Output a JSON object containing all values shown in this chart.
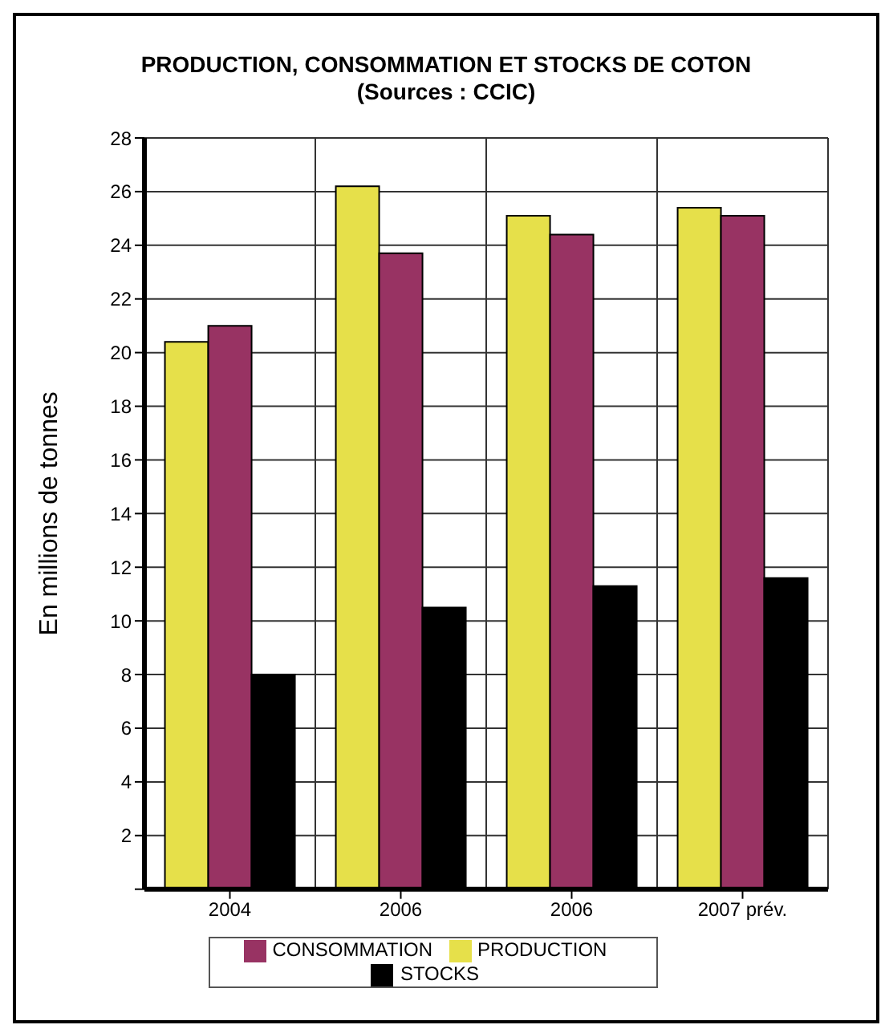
{
  "chart_data": {
    "type": "bar",
    "title": "PRODUCTION, CONSOMMATION ET STOCKS DE COTON",
    "subtitle": "(Sources : CCIC)",
    "ylabel": "En millions de tonnes",
    "categories": [
      "2004",
      "2006",
      "2006",
      "2007  prév."
    ],
    "series": [
      {
        "name": "PRODUCTION",
        "color": "#e6e04a",
        "values": [
          20.4,
          26.2,
          25.1,
          25.4
        ]
      },
      {
        "name": "CONSOMMATION",
        "color": "#983363",
        "values": [
          21.0,
          23.7,
          24.4,
          25.1
        ]
      },
      {
        "name": "STOCKS",
        "color": "#000000",
        "values": [
          8.0,
          10.5,
          11.3,
          11.6
        ]
      }
    ],
    "ylim": [
      0,
      28
    ],
    "yticks": [
      {
        "value": 0,
        "label": null
      },
      2,
      4,
      6,
      8,
      10,
      12,
      14,
      16,
      18,
      20,
      22,
      24,
      26,
      28
    ],
    "grid": true,
    "legend": "bottom"
  }
}
